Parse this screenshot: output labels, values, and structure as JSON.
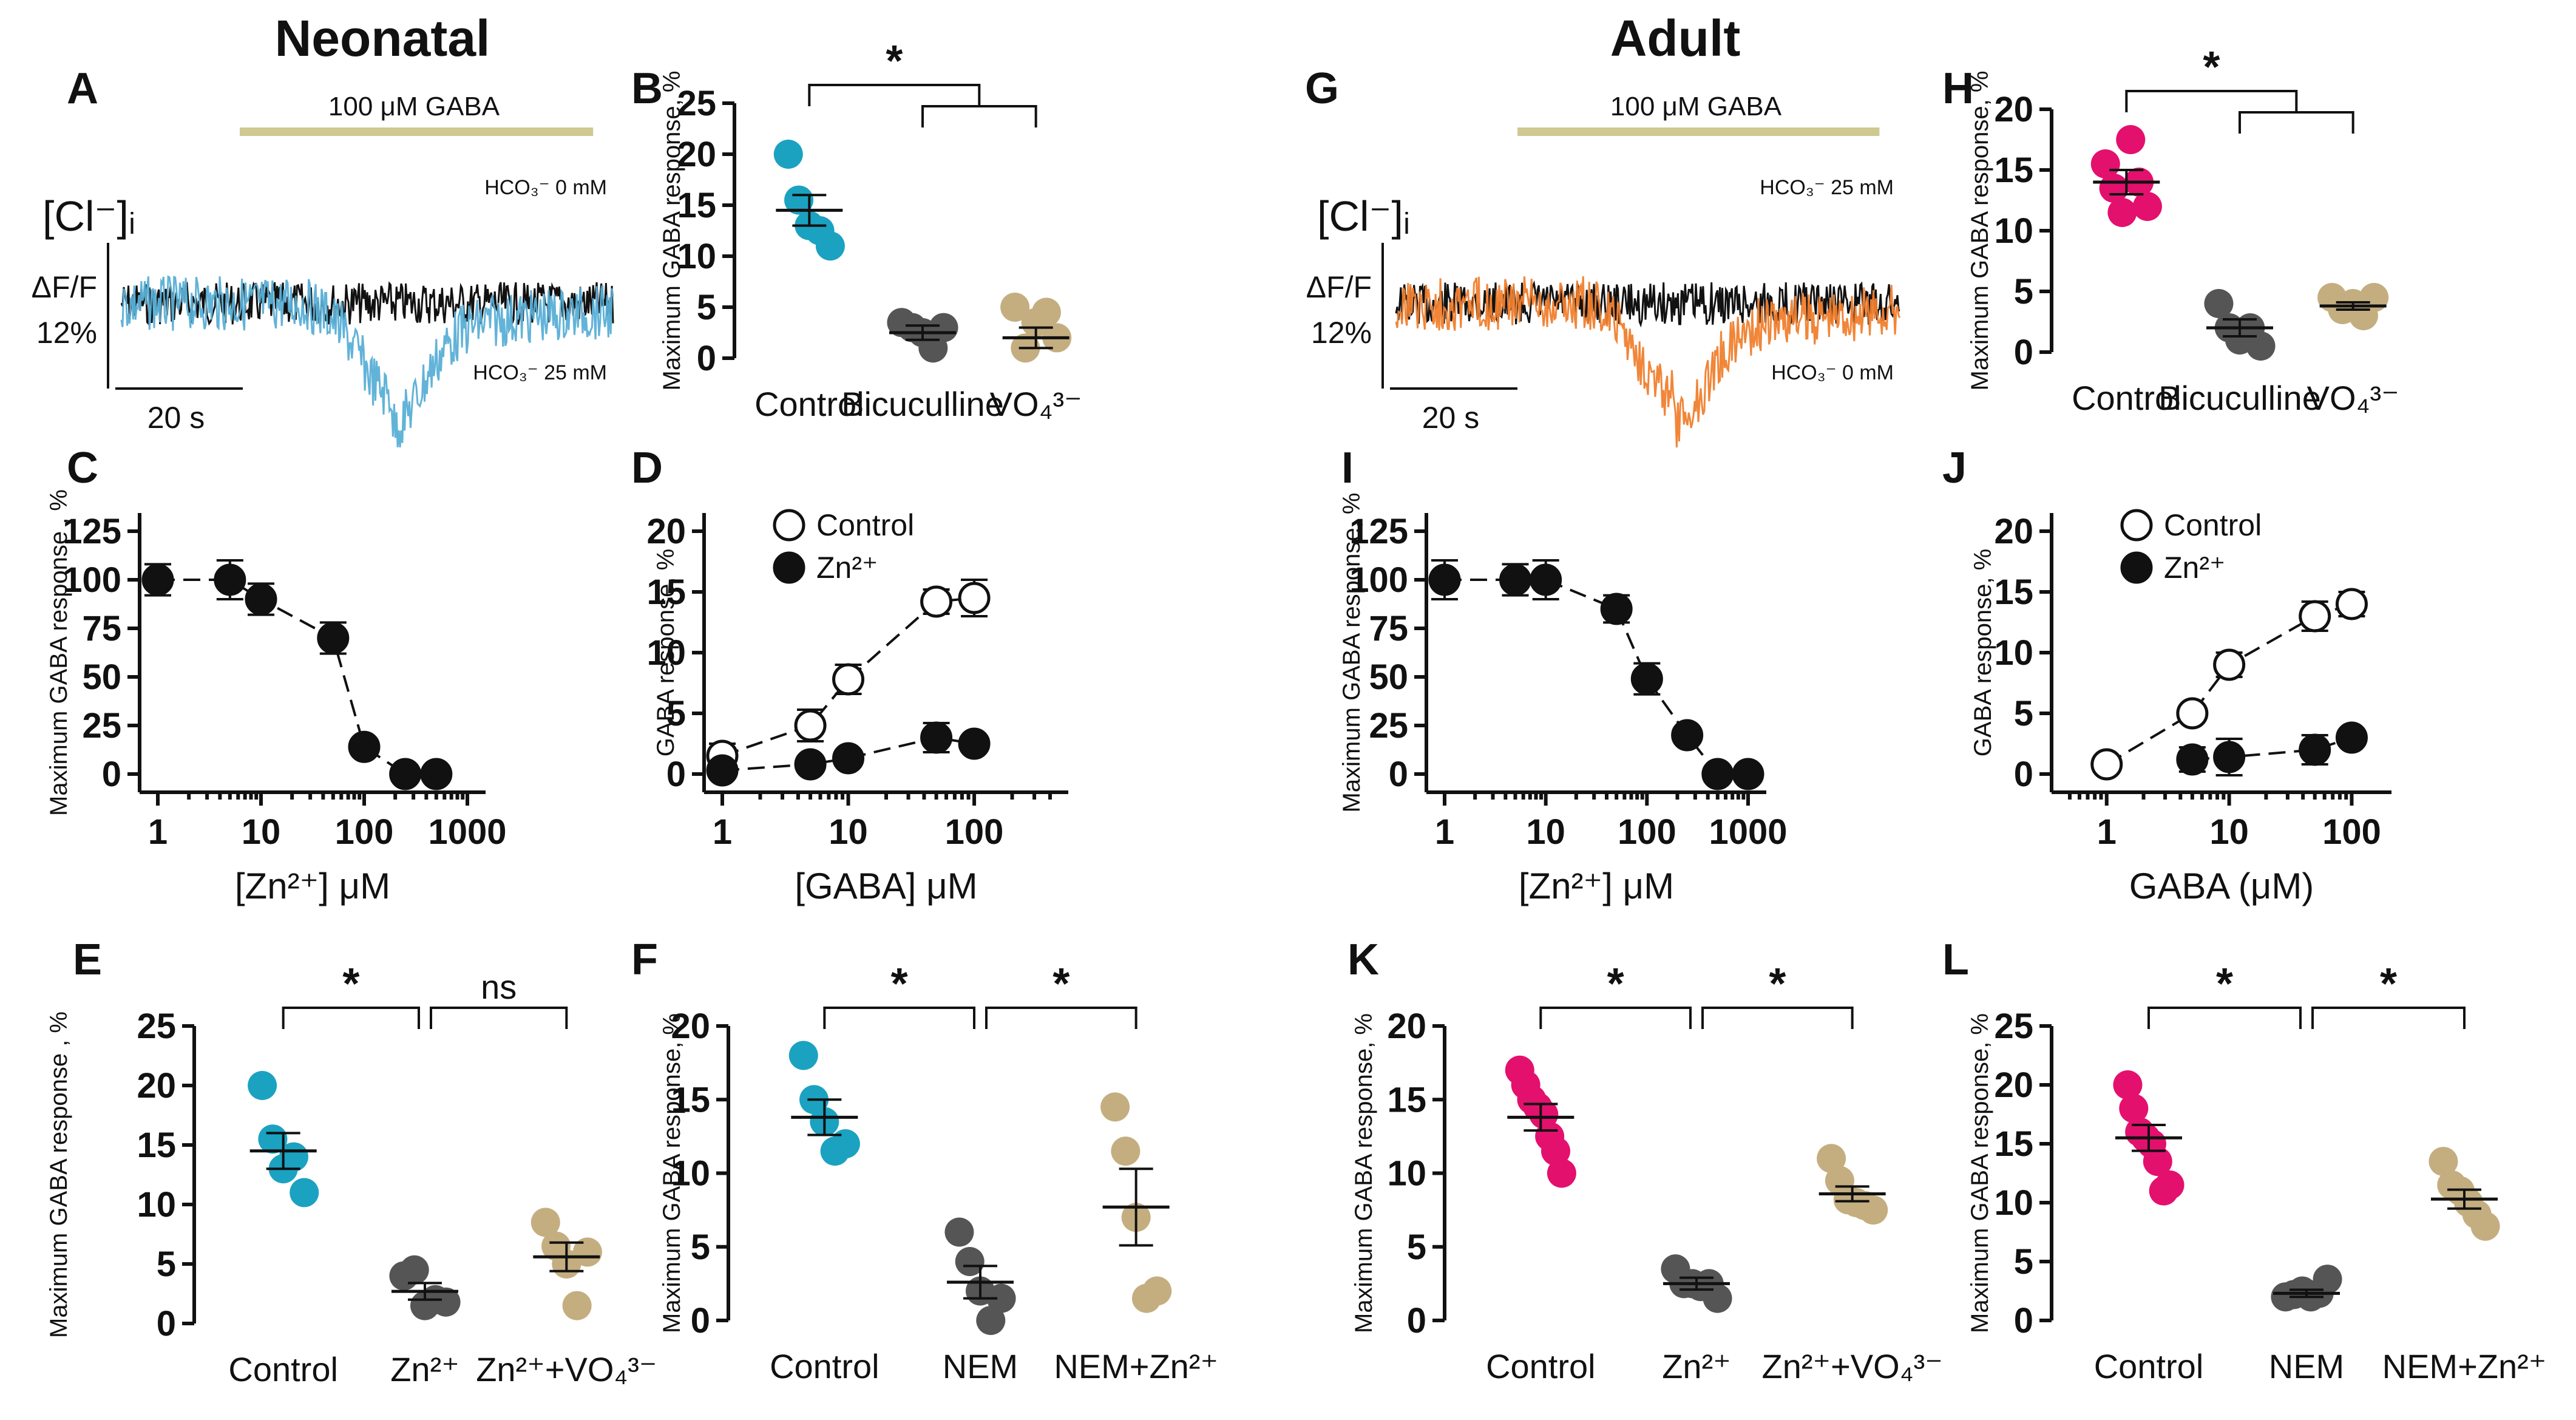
{
  "titles": {
    "neonatal": "Neonatal",
    "adult": "Adult"
  },
  "colors": {
    "neo": "#1ba2c1",
    "adult": "#e3106e",
    "grey": "#555555",
    "tan": "#c4ae80",
    "gaba_bar": "#cfc991",
    "trace_neo": "#5aafd6",
    "trace_adult": "#f07f2e"
  },
  "chart_data": [
    {
      "id": "A",
      "type": "trace",
      "label": "A",
      "bar_label": "100 μM GABA",
      "ion": "[Cl⁻]ᵢ",
      "scale_y": [
        "ΔF/F",
        "12%"
      ],
      "scale_x": "20 s",
      "trace_labels": [
        "HCO₃⁻ 0 mM",
        "HCO₃⁻ 25 mM"
      ]
    },
    {
      "id": "G",
      "type": "trace",
      "label": "G",
      "bar_label": "100 μM GABA",
      "ion": "[Cl⁻]ᵢ",
      "scale_y": [
        "ΔF/F",
        "12%"
      ],
      "scale_x": "20 s",
      "trace_labels": [
        "HCO₃⁻ 25 mM",
        "HCO₃⁻ 0 mM"
      ]
    },
    {
      "id": "B",
      "type": "scatter",
      "label": "B",
      "ylabel": "Maximum GABA response, %",
      "ylim": [
        0,
        25
      ],
      "yticks": [
        0,
        5,
        10,
        15,
        20,
        25
      ],
      "categories": [
        "Control",
        "Bicuculline",
        "VO₄³⁻"
      ],
      "colors": [
        "neo",
        "grey",
        "tan"
      ],
      "points": [
        [
          20,
          15.5,
          13,
          12.5,
          11
        ],
        [
          3.5,
          3,
          2.5,
          1,
          3
        ],
        [
          5,
          1,
          3.5,
          4.5,
          2
        ]
      ],
      "means": [
        14.5,
        2.5,
        2.0
      ],
      "sems": [
        1.5,
        0.7,
        1.0
      ],
      "sig": [
        "*"
      ],
      "bracket": "one-vs-two"
    },
    {
      "id": "H",
      "type": "scatter",
      "label": "H",
      "ylabel": "Maximum GABA response, %",
      "ylim": [
        0,
        20
      ],
      "yticks": [
        0,
        5,
        10,
        15,
        20
      ],
      "categories": [
        "Control",
        "Bicuculline",
        "VO₄³⁻"
      ],
      "colors": [
        "adult",
        "grey",
        "tan"
      ],
      "points": [
        [
          15.5,
          13.5,
          11.5,
          17.5,
          14,
          12
        ],
        [
          4,
          2,
          1,
          2,
          0.5
        ],
        [
          4.5,
          3.5,
          4,
          3,
          4.5
        ]
      ],
      "means": [
        14.0,
        2.0,
        3.8
      ],
      "sems": [
        1.0,
        0.7,
        0.3
      ],
      "sig": [
        "*"
      ],
      "bracket": "one-vs-two"
    },
    {
      "id": "C",
      "type": "line",
      "label": "C",
      "ylabel": "Maximum GABA response , %",
      "xlabel": "[Zn²⁺] μM",
      "xscale": "log",
      "xlim": [
        1,
        1000
      ],
      "xticks": [
        1,
        10,
        100,
        1000
      ],
      "ylim": [
        0,
        125
      ],
      "yticks": [
        0,
        25,
        50,
        75,
        100,
        125
      ],
      "series": [
        {
          "name": "Zn",
          "filled": true,
          "x": [
            1,
            5,
            10,
            50,
            100,
            250,
            500
          ],
          "y": [
            100,
            100,
            90,
            70,
            14,
            0,
            0
          ],
          "err": [
            8,
            10,
            8,
            8,
            3,
            0,
            0
          ]
        }
      ]
    },
    {
      "id": "I",
      "type": "line",
      "label": "I",
      "ylabel": "Maximum GABA response, %",
      "xlabel": "[Zn²⁺] μM",
      "xscale": "log",
      "xlim": [
        1,
        1000
      ],
      "xticks": [
        1,
        10,
        100,
        1000
      ],
      "ylim": [
        0,
        125
      ],
      "yticks": [
        0,
        25,
        50,
        75,
        100,
        125
      ],
      "series": [
        {
          "name": "Zn",
          "filled": true,
          "x": [
            1,
            5,
            10,
            50,
            100,
            250,
            500,
            1000
          ],
          "y": [
            100,
            100,
            100,
            85,
            49,
            20,
            0,
            0
          ],
          "err": [
            10,
            8,
            10,
            7,
            8,
            0,
            0,
            0
          ]
        }
      ]
    },
    {
      "id": "D",
      "type": "line",
      "label": "D",
      "ylabel": "GABA response, %",
      "xlabel": "[GABA] μM",
      "xscale": "log",
      "xlim": [
        1,
        400
      ],
      "xticks": [
        1,
        10,
        100
      ],
      "ylim": [
        0,
        20
      ],
      "yticks": [
        0,
        5,
        10,
        15,
        20
      ],
      "legend": [
        "Control",
        "Zn²⁺"
      ],
      "series": [
        {
          "name": "Control",
          "filled": false,
          "x": [
            1,
            5,
            10,
            50,
            100
          ],
          "y": [
            1.5,
            4,
            7.8,
            14.2,
            14.5
          ],
          "err": [
            1,
            1.3,
            1.2,
            1,
            1.5
          ]
        },
        {
          "name": "Zn²⁺",
          "filled": true,
          "x": [
            1,
            5,
            10,
            50,
            100
          ],
          "y": [
            0.3,
            0.8,
            1.3,
            3,
            2.5
          ],
          "err": [
            0,
            0,
            0,
            1.2,
            0
          ]
        }
      ]
    },
    {
      "id": "J",
      "type": "line",
      "label": "J",
      "ylabel": "GABA response, %",
      "xlabel": "GABA (μM)",
      "xscale": "log",
      "xlim": [
        0.5,
        150
      ],
      "xticks": [
        1,
        10,
        100
      ],
      "ylim": [
        0,
        20
      ],
      "yticks": [
        0,
        5,
        10,
        15,
        20
      ],
      "legend": [
        "Control",
        "Zn²⁺"
      ],
      "series": [
        {
          "name": "Control",
          "filled": false,
          "x": [
            1,
            5,
            10,
            50,
            100
          ],
          "y": [
            0.8,
            5,
            9,
            13,
            14
          ],
          "err": [
            0,
            0,
            1,
            1.2,
            1
          ]
        },
        {
          "name": "Zn²⁺",
          "filled": true,
          "x": [
            5,
            10,
            50,
            100
          ],
          "y": [
            1.2,
            1.4,
            2,
            3
          ],
          "err": [
            1,
            1.5,
            1.2,
            0
          ]
        }
      ]
    },
    {
      "id": "E",
      "type": "scatter",
      "label": "E",
      "ylabel": "Maximum GABA response , %",
      "ylim": [
        0,
        25
      ],
      "yticks": [
        0,
        5,
        10,
        15,
        20,
        25
      ],
      "categories": [
        "Control",
        "Zn²⁺",
        "Zn²⁺+VO₄³⁻"
      ],
      "colors": [
        "neo",
        "grey",
        "tan"
      ],
      "points": [
        [
          20,
          15.5,
          13,
          14,
          11
        ],
        [
          4,
          4.5,
          1.5,
          2,
          1.8
        ],
        [
          8.5,
          6.5,
          5,
          1.5,
          6
        ]
      ],
      "means": [
        14.5,
        2.7,
        5.6
      ],
      "sems": [
        1.5,
        0.7,
        1.2
      ],
      "sig": [
        "*",
        "ns"
      ],
      "bracket": "adjacent"
    },
    {
      "id": "F",
      "type": "scatter",
      "label": "F",
      "ylabel": "Maximum GABA response, %",
      "ylim": [
        0,
        20
      ],
      "yticks": [
        0,
        5,
        10,
        15,
        20
      ],
      "categories": [
        "Control",
        "NEM",
        "NEM+Zn²⁺"
      ],
      "colors": [
        "neo",
        "grey",
        "tan"
      ],
      "points": [
        [
          18,
          15,
          13.5,
          11.5,
          12
        ],
        [
          6,
          4,
          2,
          0,
          1.5
        ],
        [
          14.5,
          11.5,
          7,
          1.5,
          2
        ]
      ],
      "means": [
        13.8,
        2.6,
        7.7
      ],
      "sems": [
        1.2,
        1.1,
        2.6
      ],
      "sig": [
        "*",
        "*"
      ],
      "bracket": "adjacent"
    },
    {
      "id": "K",
      "type": "scatter",
      "label": "K",
      "ylabel": "Maximum GABA response, %",
      "ylim": [
        0,
        20
      ],
      "yticks": [
        0,
        5,
        10,
        15,
        20
      ],
      "categories": [
        "Control",
        "Zn²⁺",
        "Zn²⁺+VO₄³⁻"
      ],
      "colors": [
        "adult",
        "grey",
        "tan"
      ],
      "points": [
        [
          17,
          16,
          15,
          14.5,
          14,
          12.5,
          11.5,
          10
        ],
        [
          3.5,
          2.5,
          2.5,
          2.3,
          2.5,
          1.5
        ],
        [
          11,
          9.5,
          8.2,
          8,
          7.8,
          7.5
        ]
      ],
      "means": [
        13.8,
        2.5,
        8.6
      ],
      "sems": [
        0.9,
        0.4,
        0.5
      ],
      "sig": [
        "*",
        "*"
      ],
      "bracket": "adjacent"
    },
    {
      "id": "L",
      "type": "scatter",
      "label": "L",
      "ylabel": "Maximum GABA response, %",
      "ylim": [
        0,
        25
      ],
      "yticks": [
        0,
        5,
        10,
        15,
        20,
        25
      ],
      "categories": [
        "Control",
        "NEM",
        "NEM+Zn²⁺"
      ],
      "colors": [
        "adult",
        "grey",
        "tan"
      ],
      "points": [
        [
          20,
          18,
          16,
          15.5,
          15,
          13.5,
          11,
          11.5
        ],
        [
          2,
          2.2,
          2.5,
          2,
          2.3,
          3.5
        ],
        [
          13.5,
          11.5,
          11,
          10,
          9,
          8
        ]
      ],
      "means": [
        15.5,
        2.3,
        10.3
      ],
      "sems": [
        1.1,
        0.3,
        0.8
      ],
      "sig": [
        "*",
        "*"
      ],
      "bracket": "adjacent"
    }
  ]
}
